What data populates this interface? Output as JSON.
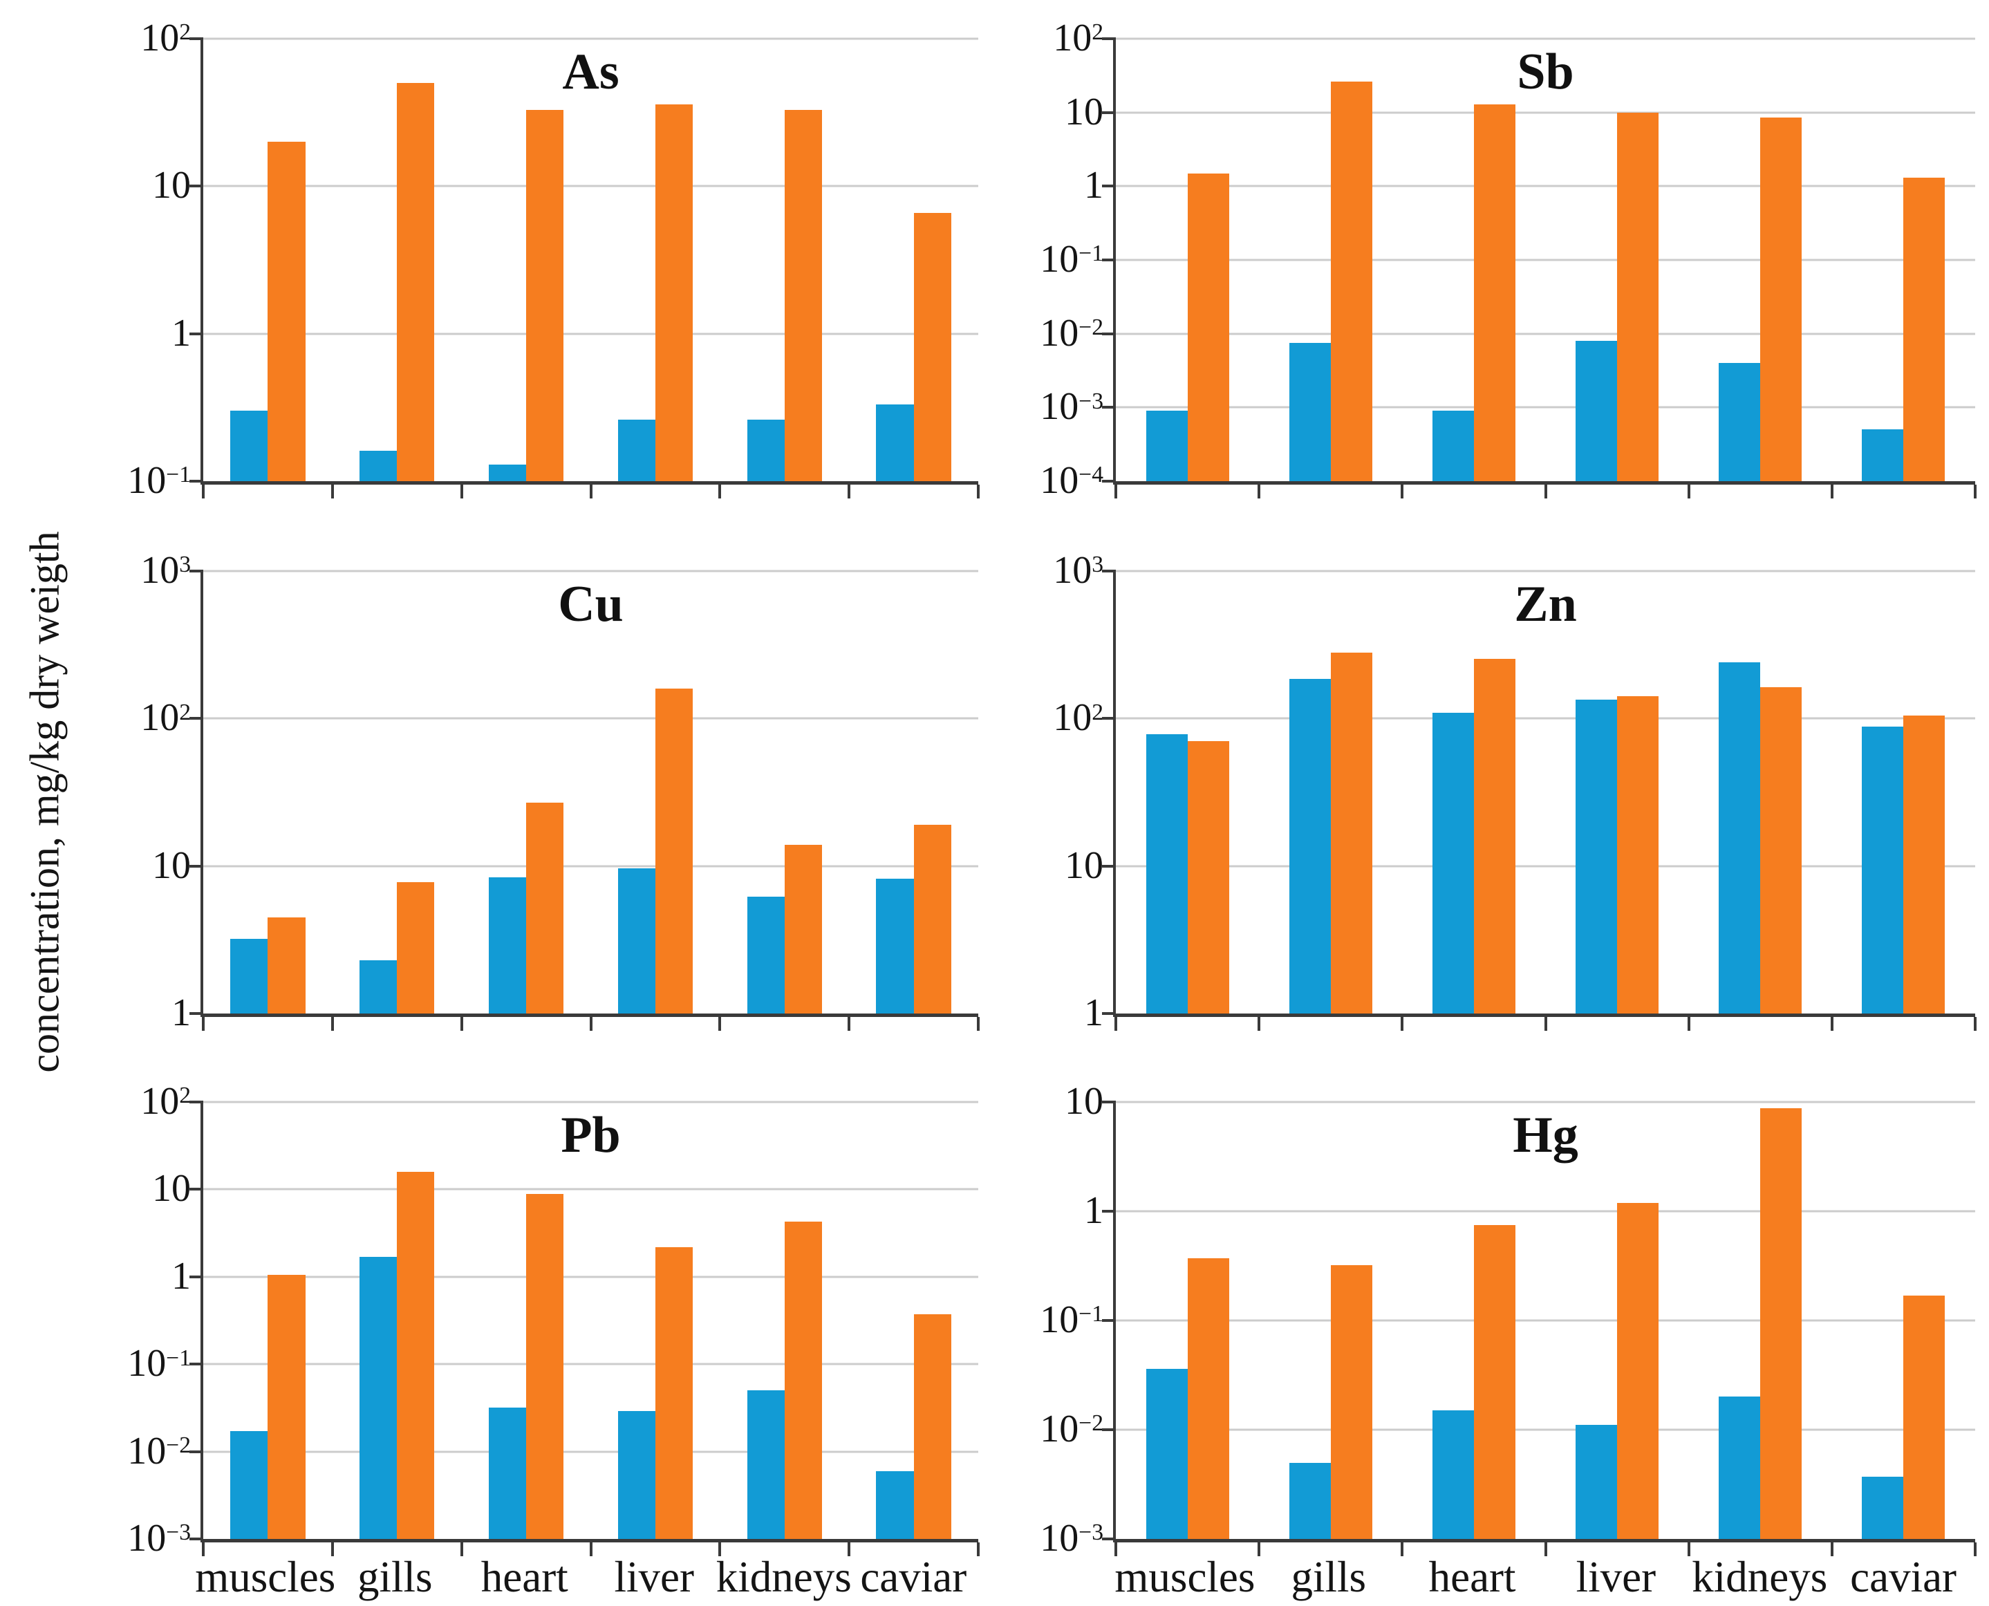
{
  "figure": {
    "y_axis_label": "concentration, mg/kg dry weigth",
    "categories": [
      "muscles",
      "gills",
      "heart",
      "liver",
      "kidneys",
      "caviar"
    ],
    "colors": {
      "series_blue": "#129bd5",
      "series_orange": "#f67d1f",
      "axis": "#3a3a3a",
      "grid": "#cccccc"
    }
  },
  "chart_data": [
    {
      "type": "bar",
      "title": "As",
      "yscale": "log",
      "ylim": [
        0.1,
        100
      ],
      "grid": true,
      "legend": "none",
      "show_x_labels": false,
      "categories": [
        "muscles",
        "gills",
        "heart",
        "liver",
        "kidneys",
        "caviar"
      ],
      "series": [
        {
          "name": "blue",
          "color": "#129bd5",
          "values": [
            0.3,
            0.16,
            0.13,
            0.26,
            0.26,
            0.33
          ]
        },
        {
          "name": "orange",
          "color": "#f67d1f",
          "values": [
            20,
            50,
            33,
            36,
            33,
            6.6
          ]
        }
      ]
    },
    {
      "type": "bar",
      "title": "Sb",
      "yscale": "log",
      "ylim": [
        0.0001,
        100
      ],
      "grid": true,
      "legend": "none",
      "show_x_labels": false,
      "categories": [
        "muscles",
        "gills",
        "heart",
        "liver",
        "kidneys",
        "caviar"
      ],
      "series": [
        {
          "name": "blue",
          "color": "#129bd5",
          "values": [
            0.0009,
            0.0075,
            0.0009,
            0.008,
            0.004,
            0.0005
          ]
        },
        {
          "name": "orange",
          "color": "#f67d1f",
          "values": [
            1.5,
            26,
            13,
            10,
            8.5,
            1.3
          ]
        }
      ]
    },
    {
      "type": "bar",
      "title": "Cu",
      "yscale": "log",
      "ylim": [
        1,
        1000
      ],
      "grid": true,
      "legend": "none",
      "show_x_labels": false,
      "categories": [
        "muscles",
        "gills",
        "heart",
        "liver",
        "kidneys",
        "caviar"
      ],
      "series": [
        {
          "name": "blue",
          "color": "#129bd5",
          "values": [
            3.2,
            2.3,
            8.4,
            9.6,
            6.2,
            8.2
          ]
        },
        {
          "name": "orange",
          "color": "#f67d1f",
          "values": [
            4.5,
            7.8,
            27,
            160,
            14,
            19
          ]
        }
      ]
    },
    {
      "type": "bar",
      "title": "Zn",
      "yscale": "log",
      "ylim": [
        1,
        1000
      ],
      "grid": true,
      "legend": "none",
      "show_x_labels": false,
      "categories": [
        "muscles",
        "gills",
        "heart",
        "liver",
        "kidneys",
        "caviar"
      ],
      "series": [
        {
          "name": "blue",
          "color": "#129bd5",
          "values": [
            78,
            185,
            110,
            135,
            240,
            88
          ]
        },
        {
          "name": "orange",
          "color": "#f67d1f",
          "values": [
            70,
            280,
            255,
            142,
            163,
            105
          ]
        }
      ]
    },
    {
      "type": "bar",
      "title": "Pb",
      "yscale": "log",
      "ylim": [
        0.001,
        100
      ],
      "grid": true,
      "legend": "none",
      "show_x_labels": true,
      "categories": [
        "muscles",
        "gills",
        "heart",
        "liver",
        "kidneys",
        "caviar"
      ],
      "series": [
        {
          "name": "blue",
          "color": "#129bd5",
          "values": [
            0.017,
            1.7,
            0.032,
            0.029,
            0.05,
            0.006
          ]
        },
        {
          "name": "orange",
          "color": "#f67d1f",
          "values": [
            1.05,
            16,
            8.9,
            2.2,
            4.3,
            0.37
          ]
        }
      ]
    },
    {
      "type": "bar",
      "title": "Hg",
      "yscale": "log",
      "ylim": [
        0.001,
        10
      ],
      "grid": true,
      "legend": "none",
      "show_x_labels": true,
      "categories": [
        "muscles",
        "gills",
        "heart",
        "liver",
        "kidneys",
        "caviar"
      ],
      "series": [
        {
          "name": "blue",
          "color": "#129bd5",
          "values": [
            0.036,
            0.005,
            0.015,
            0.011,
            0.02,
            0.0037
          ]
        },
        {
          "name": "orange",
          "color": "#f67d1f",
          "values": [
            0.37,
            0.32,
            0.75,
            1.2,
            8.8,
            0.17
          ]
        }
      ]
    }
  ]
}
